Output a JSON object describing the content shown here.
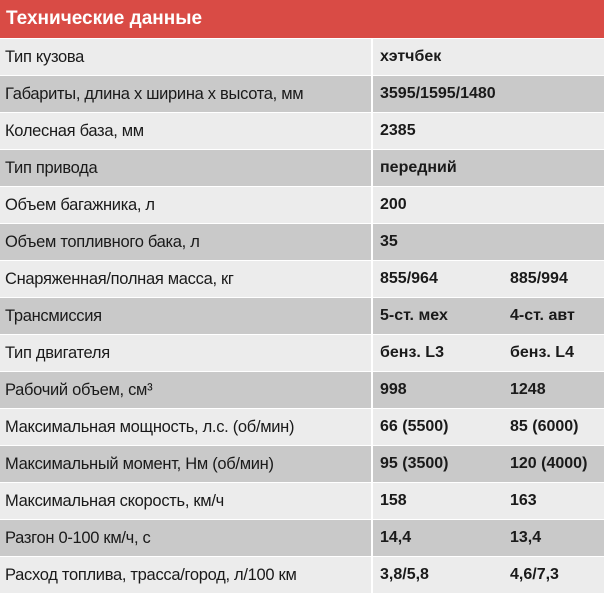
{
  "header": {
    "title": "Технические данные"
  },
  "table": {
    "rows": [
      [
        "Тип кузова",
        "хэтчбек"
      ],
      [
        "Габариты, длина x ширина x высота, мм",
        "3595/1595/1480"
      ],
      [
        "Колесная база, мм",
        "2385"
      ],
      [
        "Тип привода",
        "передний"
      ],
      [
        "Объем багажника, л",
        "200"
      ],
      [
        "Объем топливного бака, л",
        "35"
      ],
      [
        "Снаряженная/полная масса, кг",
        "855/964",
        "885/994"
      ],
      [
        "Трансмиссия",
        "5-ст. мех",
        "4-ст. авт"
      ],
      [
        "Тип двигателя",
        "бенз. L3",
        "бенз. L4"
      ],
      [
        "Рабочий объем, см³",
        "998",
        "1248"
      ],
      [
        "Максимальная мощность, л.с. (об/мин)",
        "66 (5500)",
        "85 (6000)"
      ],
      [
        "Максимальный момент, Нм (об/мин)",
        "95 (3500)",
        "120 (4000)"
      ],
      [
        "Максимальная скорость, км/ч",
        "158",
        "163"
      ],
      [
        "Разгон 0-100 км/ч, с",
        "14,4",
        "13,4"
      ],
      [
        "Расход топлива, трасса/город, л/100 км",
        "3,8/5,8",
        "4,6/7,3"
      ]
    ]
  }
}
